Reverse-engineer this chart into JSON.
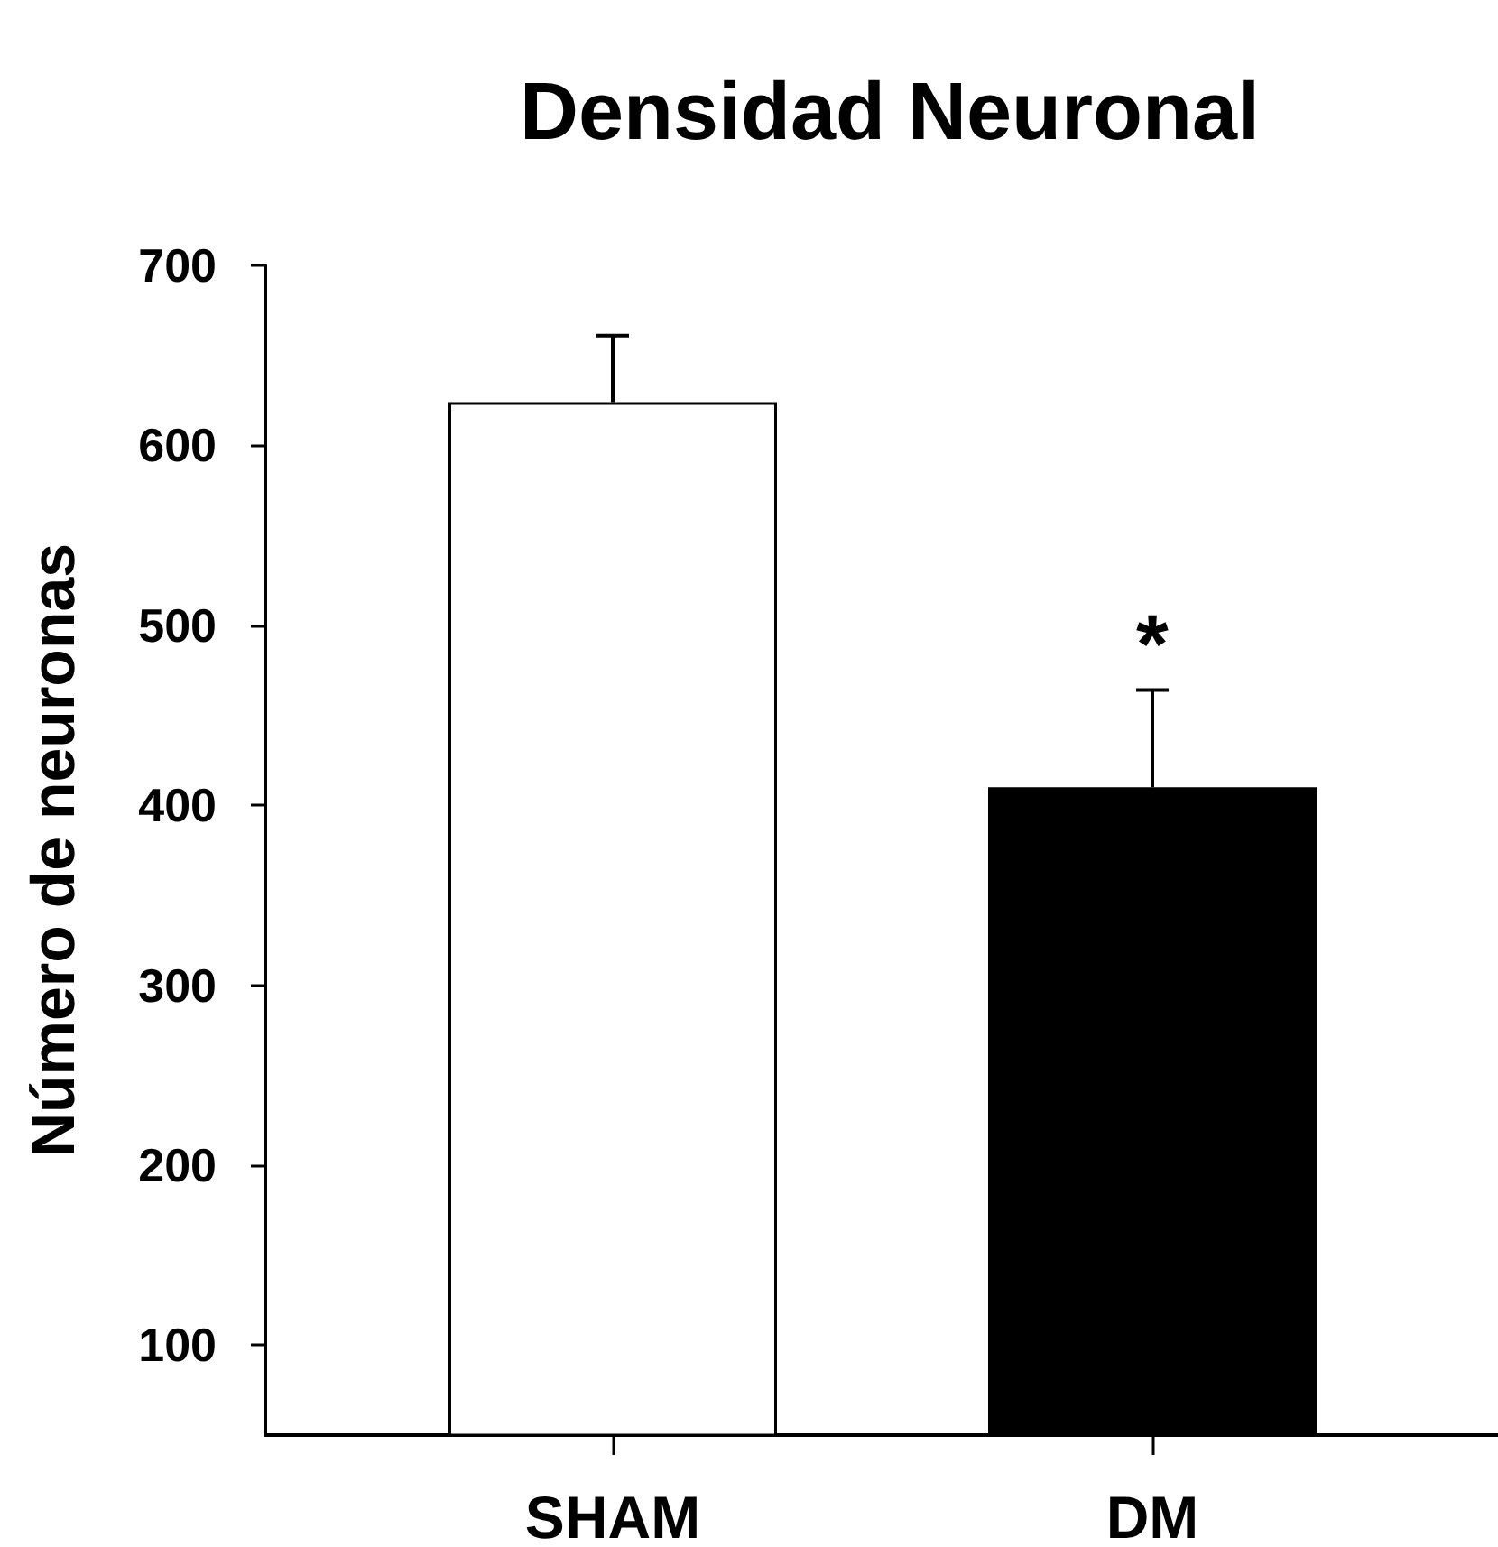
{
  "chart_data": {
    "type": "bar",
    "title": "Densidad Neuronal",
    "ylabel": "Número de neuronas",
    "categories": [
      "SHAM",
      "DM"
    ],
    "values": [
      624,
      410
    ],
    "colors": [
      "#ffffff",
      "#000000"
    ],
    "errors": [
      [
        624,
        661
      ],
      [
        410,
        464
      ]
    ],
    "ylim": [
      50,
      700
    ],
    "yticks": [
      100,
      200,
      300,
      400,
      500,
      600,
      700
    ],
    "annotations": [
      {
        "text": "*",
        "x": "DM",
        "y": 464
      }
    ]
  }
}
